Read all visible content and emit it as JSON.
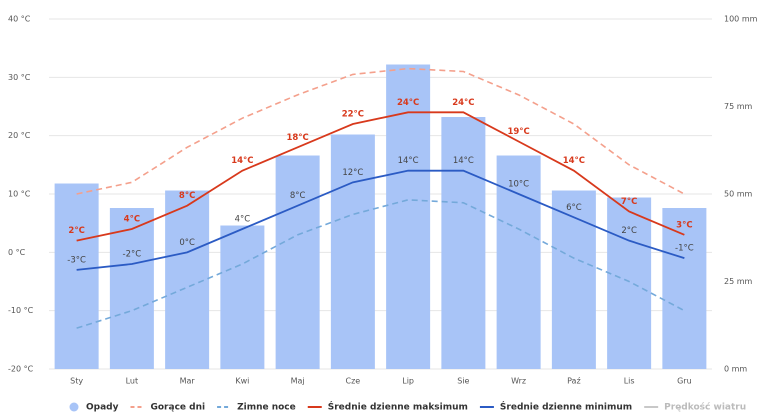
{
  "chart_data": {
    "type": "combo",
    "categories": [
      "Sty",
      "Lut",
      "Mar",
      "Kwi",
      "Maj",
      "Cze",
      "Lip",
      "Sie",
      "Wrz",
      "Paź",
      "Lis",
      "Gru"
    ],
    "ylim": [
      -20,
      40
    ],
    "yticks": [
      {
        "value": -20,
        "label": "-20 °C"
      },
      {
        "value": -10,
        "label": "-10 °C"
      },
      {
        "value": 0,
        "label": "0 °C"
      },
      {
        "value": 10,
        "label": "10 °C"
      },
      {
        "value": 20,
        "label": "20 °C"
      },
      {
        "value": 30,
        "label": "30 °C"
      },
      {
        "value": 40,
        "label": "40 °C"
      }
    ],
    "y2lim": [
      0,
      100
    ],
    "y2ticks": [
      {
        "value": 0,
        "label": "0 mm"
      },
      {
        "value": 25,
        "label": "25 mm"
      },
      {
        "value": 50,
        "label": "50 mm"
      },
      {
        "value": 75,
        "label": "75 mm"
      },
      {
        "value": 100,
        "label": "100 mm"
      }
    ],
    "grid": true,
    "series": [
      {
        "name": "Opady",
        "type": "bar",
        "axis": "y2",
        "color": "#a8c4f7",
        "values": [
          53,
          46,
          51,
          41,
          61,
          67,
          87,
          72,
          61,
          51,
          49,
          46
        ]
      },
      {
        "name": "Gorące dni",
        "type": "line",
        "dash": true,
        "color": "#f4a08c",
        "values": [
          10,
          12,
          18,
          23,
          27,
          30.5,
          31.5,
          31,
          27,
          22,
          15,
          10
        ]
      },
      {
        "name": "Zimne noce",
        "type": "line",
        "dash": true,
        "color": "#74a9da",
        "values": [
          -13,
          -10,
          -6,
          -2,
          3,
          6.5,
          9,
          8.5,
          4,
          -1,
          -5,
          -10
        ]
      },
      {
        "name": "Średnie dzienne maksimum",
        "type": "line",
        "color": "#d8391c",
        "values": [
          2,
          4,
          8,
          14,
          18,
          22,
          24,
          24,
          19,
          14,
          7,
          3
        ],
        "value_labels": [
          "2°C",
          "4°C",
          "8°C",
          "14°C",
          "18°C",
          "22°C",
          "24°C",
          "24°C",
          "19°C",
          "14°C",
          "7°C",
          "3°C"
        ]
      },
      {
        "name": "Średnie dzienne minimum",
        "type": "line",
        "color": "#2b5bc4",
        "values": [
          -3,
          -2,
          0,
          4,
          8,
          12,
          14,
          14,
          10,
          6,
          2,
          -1
        ],
        "value_labels": [
          "-3°C",
          "-2°C",
          "0°C",
          "4°C",
          "8°C",
          "12°C",
          "14°C",
          "14°C",
          "10°C",
          "6°C",
          "2°C",
          "-1°C"
        ]
      }
    ],
    "inactive_series": [
      {
        "name": "Prędkość wiatru",
        "color": "#c8c8c8"
      }
    ]
  }
}
